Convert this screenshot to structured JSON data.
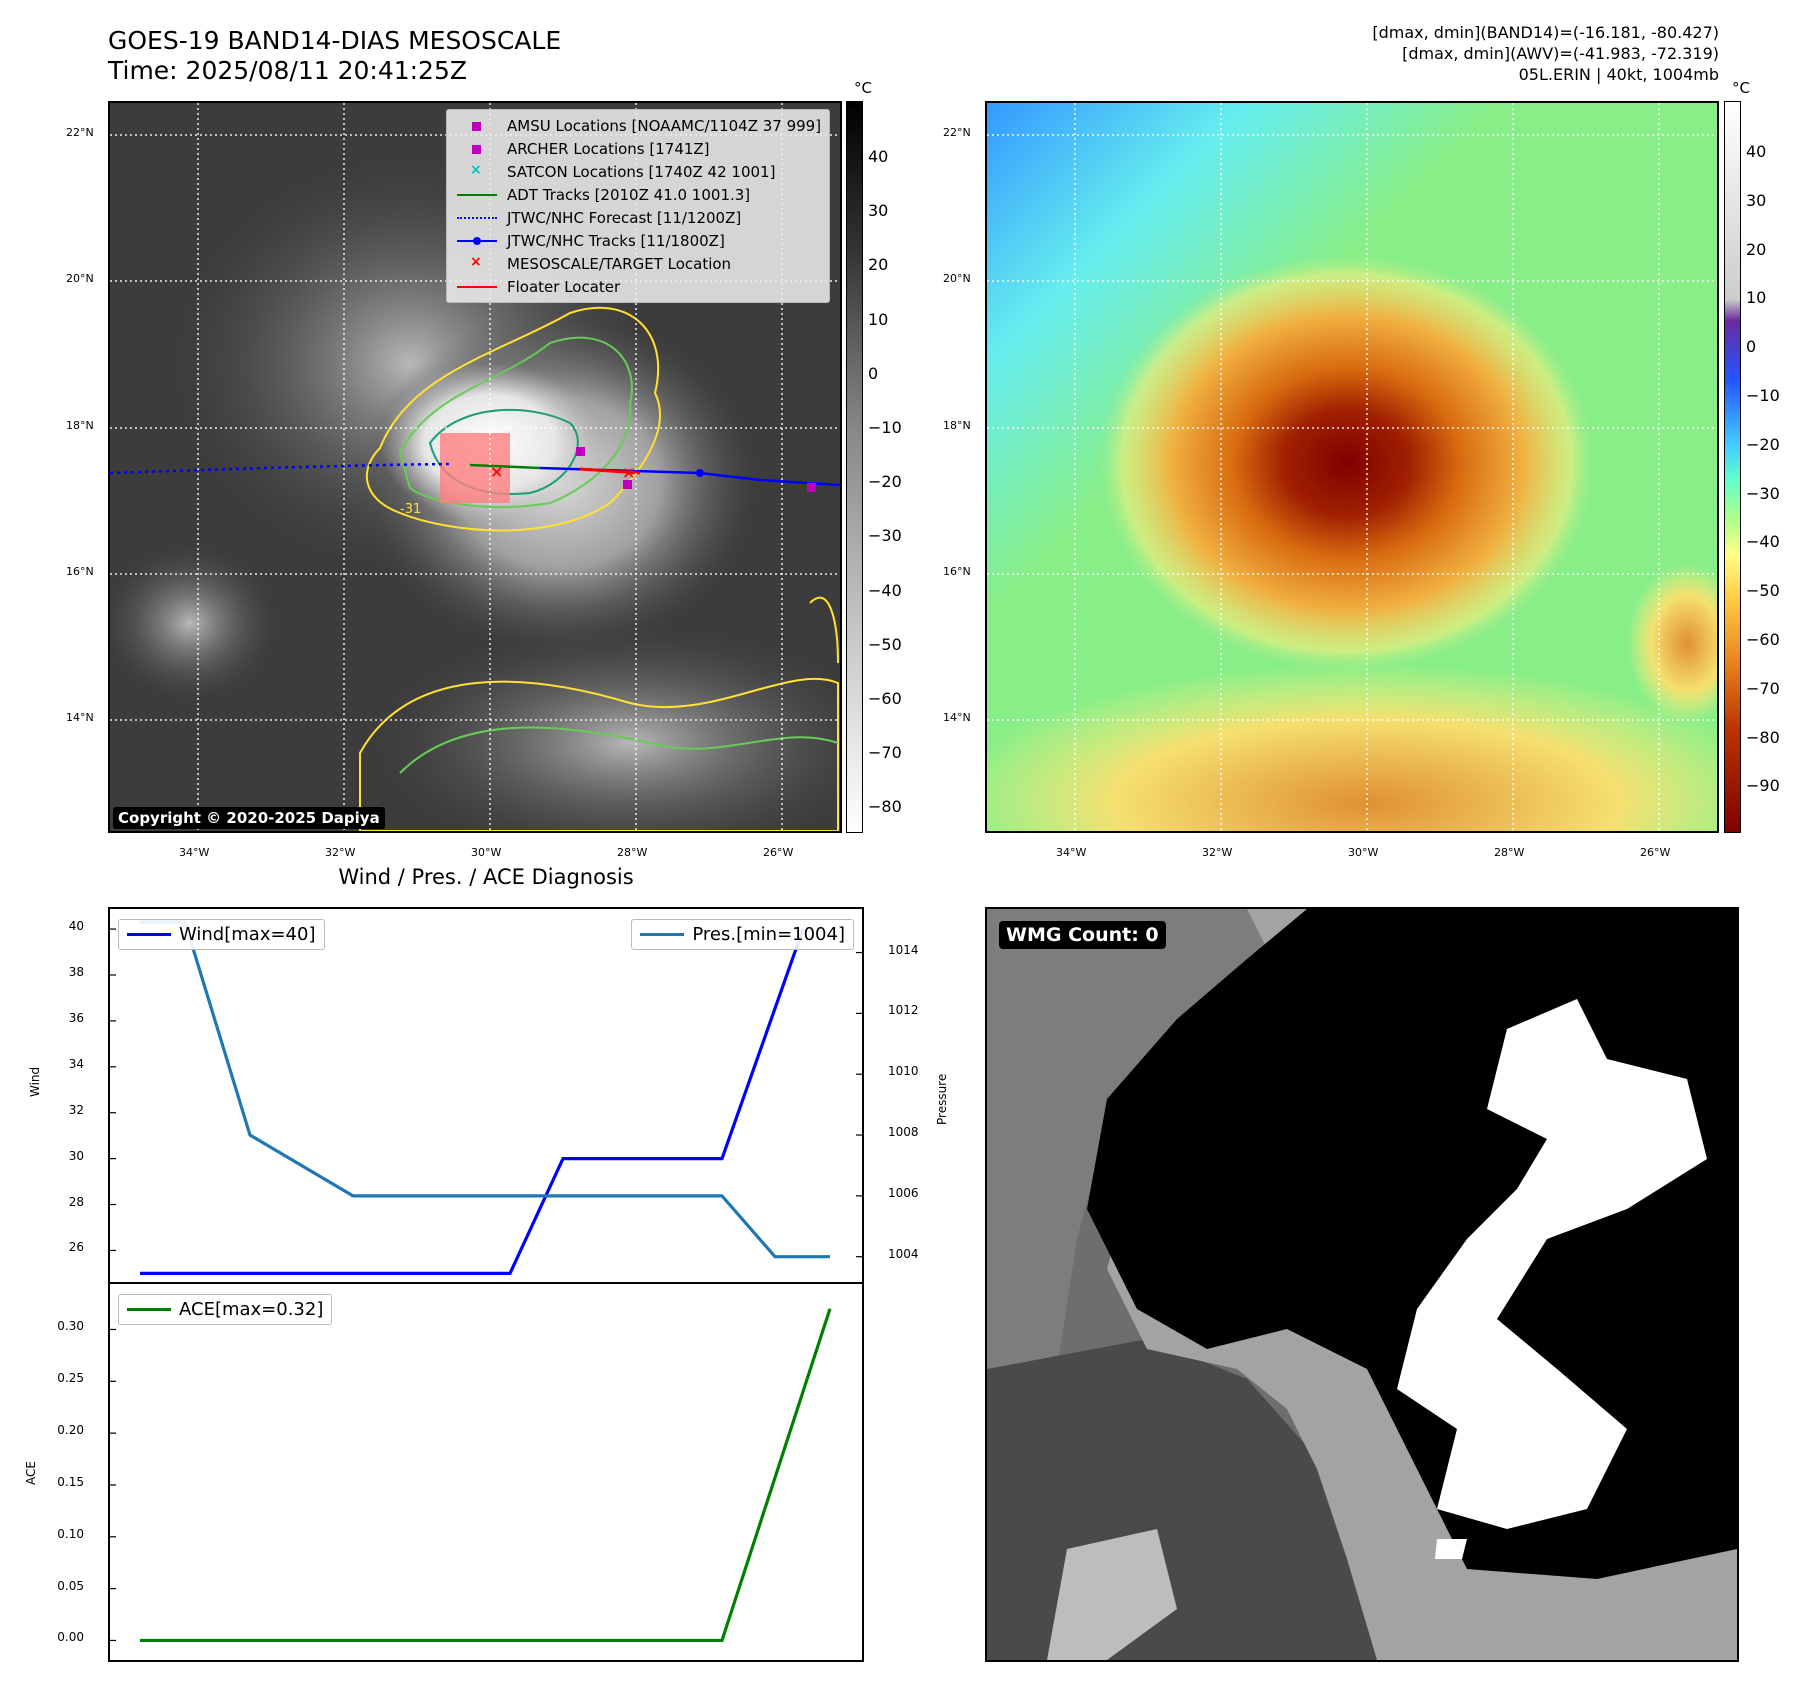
{
  "header": {
    "title_line1": "GOES-19 BAND14-DIAS MESOSCALE",
    "title_line2": "Time: 2025/08/11 20:41:25Z",
    "info_line1": "[dmax, dmin](BAND14)=(-16.181, -80.427)",
    "info_line2": "[dmax, dmin](AWV)=(-41.983, -72.319)",
    "info_line3": "05L.ERIN | 40kt, 1004mb"
  },
  "map": {
    "lat_labels": [
      "22°N",
      "20°N",
      "18°N",
      "16°N",
      "14°N"
    ],
    "lon_labels": [
      "34°W",
      "32°W",
      "30°W",
      "28°W",
      "26°W"
    ],
    "contour_label": "-31",
    "copyright": "Copyright © 2020-2025 Dapiya",
    "legend": [
      {
        "label": "AMSU Locations [NOAAMC/1104Z 37 999]",
        "color": "#bf00bf",
        "sym": "square"
      },
      {
        "label": "ARCHER Locations [1741Z]",
        "color": "#bf00bf",
        "sym": "square"
      },
      {
        "label": "SATCON Locations [1740Z 42 1001]",
        "color": "#00bfbf",
        "sym": "x"
      },
      {
        "label": "ADT Tracks [2010Z 41.0 1001.3]",
        "color": "#008000",
        "sym": "line"
      },
      {
        "label": "JTWC/NHC Forecast [11/1200Z]",
        "color": "#0000ff",
        "sym": "dotted"
      },
      {
        "label": "JTWC/NHC Tracks [11/1800Z]",
        "color": "#0000ff",
        "sym": "linedot"
      },
      {
        "label": "MESOSCALE/TARGET Location",
        "color": "#ff0000",
        "sym": "x"
      },
      {
        "label": "Floater Locater",
        "color": "#ff0000",
        "sym": "line"
      }
    ]
  },
  "colorbar1": {
    "unit": "°C",
    "ticks": [
      "40",
      "30",
      "20",
      "10",
      "0",
      "−10",
      "−20",
      "−30",
      "−40",
      "−50",
      "−60",
      "−70",
      "−80"
    ]
  },
  "colorbar2": {
    "unit": "°C",
    "ticks": [
      "40",
      "30",
      "20",
      "10",
      "0",
      "−10",
      "−20",
      "−30",
      "−40",
      "−50",
      "−60",
      "−70",
      "−80",
      "−90"
    ]
  },
  "diagnosis": {
    "title": "Wind / Pres. / ACE Diagnosis",
    "wind_ylabel": "Wind",
    "pres_ylabel": "Pressure",
    "ace_ylabel": "ACE",
    "wind_legend": "Wind[max=40]",
    "pres_legend": "Pres.[min=1004]",
    "ace_legend": "ACE[max=0.32]"
  },
  "wmg": {
    "label": "WMG Count: 0"
  },
  "colors": {
    "wind": "#0000ff",
    "pressure": "#1f77b4",
    "ace": "#008000"
  },
  "chart_data": [
    {
      "type": "line",
      "title": "Wind / Pres. / ACE Diagnosis",
      "ylabel": "Wind",
      "ylim": [
        24.8,
        40.7
      ],
      "yticks": [
        26,
        28,
        30,
        32,
        34,
        36,
        38,
        40
      ],
      "series": [
        {
          "name": "Wind[max=40]",
          "values": [
            25,
            25,
            25,
            25,
            25,
            25,
            25,
            30,
            30,
            30,
            40
          ]
        }
      ]
    },
    {
      "type": "line",
      "ylabel": "Pressure",
      "ylim": [
        1003.3,
        1015.3
      ],
      "yticks": [
        1004,
        1006,
        1008,
        1010,
        1012,
        1014
      ],
      "series": [
        {
          "name": "Pres.[min=1004]",
          "values": [
            1015,
            1015,
            1008,
            1006,
            1006,
            1006,
            1006,
            1006,
            1006,
            1006,
            1006,
            1004,
            1004
          ]
        }
      ]
    },
    {
      "type": "line",
      "ylabel": "ACE",
      "ylim": [
        -0.015,
        0.34
      ],
      "yticks": [
        0.0,
        0.05,
        0.1,
        0.15,
        0.2,
        0.25,
        0.3
      ],
      "ytick_labels": [
        "0.00",
        "0.05",
        "0.10",
        "0.15",
        "0.20",
        "0.25",
        "0.30"
      ],
      "series": [
        {
          "name": "ACE[max=0.32]",
          "values": [
            0,
            0,
            0,
            0,
            0,
            0,
            0,
            0,
            0,
            0,
            0,
            0.32
          ]
        }
      ]
    }
  ]
}
